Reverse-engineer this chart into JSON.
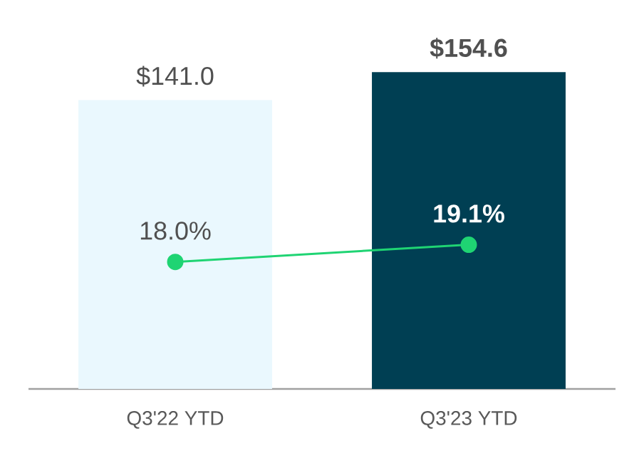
{
  "chart_data": {
    "type": "bar",
    "categories": [
      "Q3'22 YTD",
      "Q3'23 YTD"
    ],
    "series": [
      {
        "values": [
          141.0,
          154.6
        ],
        "colors": [
          "#eaf8fe",
          "#003f53"
        ],
        "value_labels": [
          "$141.0",
          "**$154.6**"
        ]
      },
      {
        "type": "line",
        "axis": "y2",
        "color": "#1fd473",
        "marker": "circle",
        "values": [
          18.0,
          19.1
        ],
        "value_labels": [
          "18.0%",
          "**19.1%**"
        ]
      }
    ],
    "tick_labels": "x"
  }
}
